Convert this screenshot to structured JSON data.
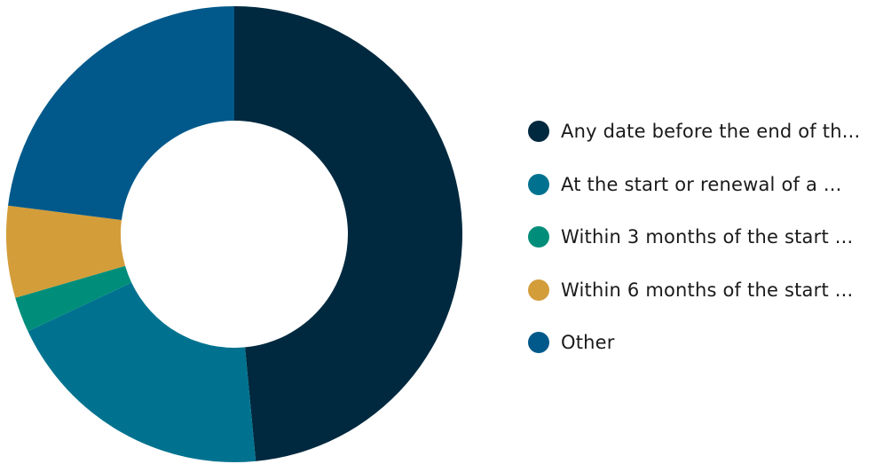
{
  "chart_data": {
    "type": "pie",
    "variant": "donut",
    "title": "",
    "legend_position": "right",
    "slices": [
      {
        "label": "Any date before the end of th...",
        "value": 48.5,
        "color": "#00293f"
      },
      {
        "label": "At the start or renewal of a ...",
        "value": 19.5,
        "color": "#00728f"
      },
      {
        "label": "Within 3 months of the start ...",
        "value": 2.5,
        "color": "#008e7a"
      },
      {
        "label": "Within 6 months of the start ...",
        "value": 6.5,
        "color": "#d39d3a"
      },
      {
        "label": "Other",
        "value": 23.0,
        "color": "#00598a"
      }
    ]
  }
}
